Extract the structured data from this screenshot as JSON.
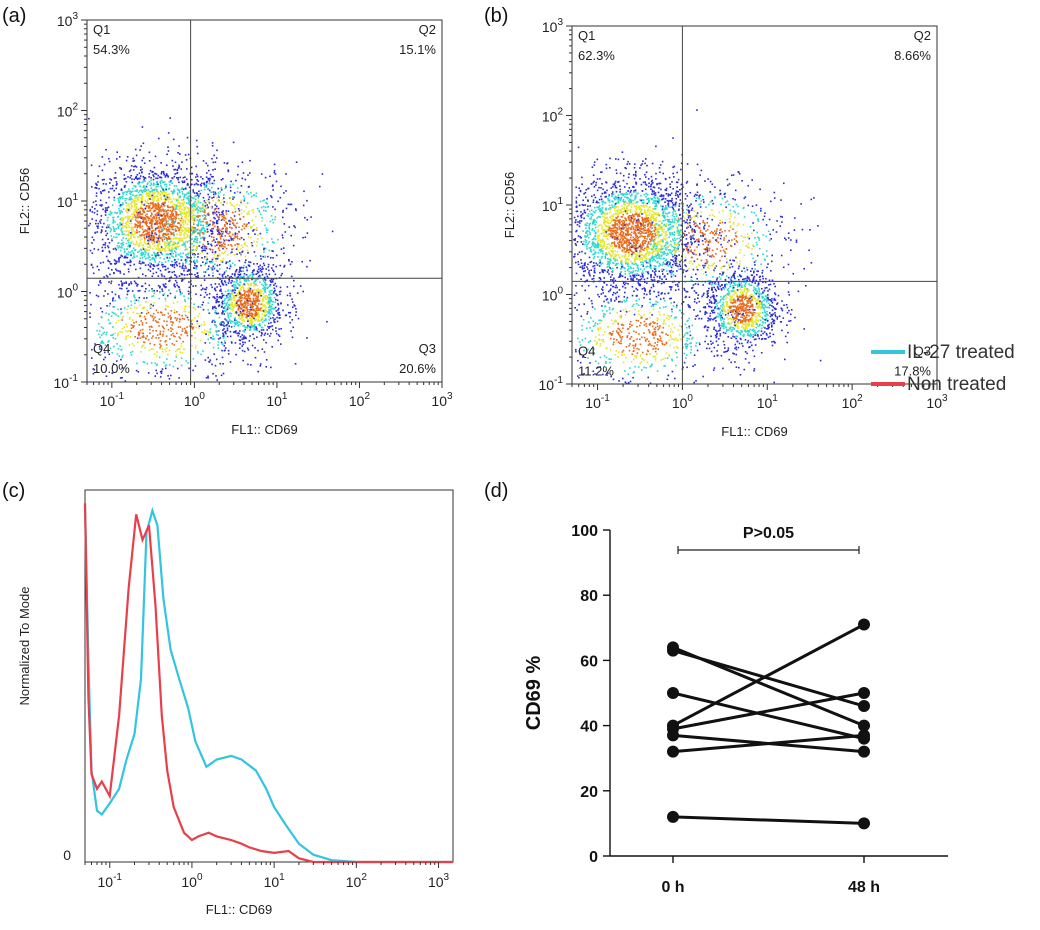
{
  "panels": {
    "a": "(a)",
    "b": "(b)",
    "c": "(c)",
    "d": "(d)"
  },
  "colors": {
    "il27": "#33c4e0",
    "non_treated": "#e8404a",
    "dot_low": "#2a2ad8",
    "dot_mid": "#2ed8d0",
    "dot_high": "#e6e62a",
    "dot_peak": "#e86a1a"
  },
  "chart_data": [
    {
      "type": "scatter",
      "panel": "(a)",
      "xlabel": "FL1:: CD69",
      "ylabel": "FL2:: CD56",
      "xscale": "log",
      "yscale": "log",
      "xlim": [
        0.05,
        1000
      ],
      "ylim": [
        0.1,
        1000
      ],
      "gate": {
        "x": 0.9,
        "y": 1.4
      },
      "quadrants": [
        {
          "name": "Q1",
          "percent": "54.3%"
        },
        {
          "name": "Q2",
          "percent": "15.1%"
        },
        {
          "name": "Q3",
          "percent": "20.6%"
        },
        {
          "name": "Q4",
          "percent": "10.0%"
        }
      ],
      "clusters": [
        {
          "x": 0.35,
          "y": 6,
          "sx": 0.42,
          "sy": 0.32,
          "n": 2300
        },
        {
          "x": 4.5,
          "y": 0.75,
          "sx": 0.22,
          "sy": 0.22,
          "n": 1000
        },
        {
          "x": 0.4,
          "y": 0.4,
          "sx": 0.55,
          "sy": 0.3,
          "n": 700
        },
        {
          "x": 2,
          "y": 5,
          "sx": 0.5,
          "sy": 0.35,
          "n": 700
        }
      ]
    },
    {
      "type": "scatter",
      "panel": "(b)",
      "xlabel": "FL1:: CD69",
      "ylabel": "FL2:: CD56",
      "xscale": "log",
      "yscale": "log",
      "xlim": [
        0.05,
        1000
      ],
      "ylim": [
        0.1,
        1000
      ],
      "gate": {
        "x": 1.0,
        "y": 1.4
      },
      "quadrants": [
        {
          "name": "Q1",
          "percent": "62.3%"
        },
        {
          "name": "Q2",
          "percent": "8.66%"
        },
        {
          "name": "Q3",
          "percent": "17.8%"
        },
        {
          "name": "Q4",
          "percent": "11.2%"
        }
      ],
      "clusters": [
        {
          "x": 0.25,
          "y": 5,
          "sx": 0.4,
          "sy": 0.32,
          "n": 2400
        },
        {
          "x": 5,
          "y": 0.7,
          "sx": 0.22,
          "sy": 0.22,
          "n": 1000
        },
        {
          "x": 0.3,
          "y": 0.35,
          "sx": 0.5,
          "sy": 0.3,
          "n": 650
        },
        {
          "x": 2,
          "y": 4,
          "sx": 0.5,
          "sy": 0.35,
          "n": 600
        }
      ],
      "legend": [
        {
          "label": "IL-27 treated",
          "color": "#33c4e0"
        },
        {
          "label": "Non treated",
          "color": "#e8404a"
        }
      ]
    },
    {
      "type": "line",
      "panel": "(c)",
      "xlabel": "FL1:: CD69",
      "ylabel": "Normalized To Mode",
      "xscale": "log",
      "xlim": [
        0.05,
        1500
      ],
      "ylim": [
        0,
        100
      ],
      "y_tick_labels": [
        "0"
      ],
      "series": [
        {
          "name": "IL-27 treated",
          "color": "#33c4e0",
          "x": [
            0.05,
            0.055,
            0.06,
            0.07,
            0.08,
            0.1,
            0.13,
            0.16,
            0.2,
            0.24,
            0.28,
            0.33,
            0.38,
            0.45,
            0.55,
            0.7,
            0.9,
            1.1,
            1.5,
            2,
            3,
            4,
            6,
            8,
            10,
            14,
            20,
            30,
            50,
            100,
            1500
          ],
          "y": [
            98,
            55,
            25,
            14,
            13,
            16,
            20,
            28,
            35,
            50,
            90,
            96,
            92,
            72,
            58,
            50,
            42,
            33,
            26,
            28,
            29,
            28,
            25,
            20,
            15,
            10,
            5,
            2,
            0.5,
            0,
            0
          ]
        },
        {
          "name": "Non treated",
          "color": "#e8404a",
          "x": [
            0.05,
            0.055,
            0.06,
            0.07,
            0.08,
            0.1,
            0.13,
            0.17,
            0.21,
            0.25,
            0.3,
            0.36,
            0.43,
            0.5,
            0.6,
            0.8,
            1,
            1.2,
            1.6,
            2,
            3,
            4,
            5,
            7,
            10,
            15,
            20,
            30,
            50,
            1500
          ],
          "y": [
            98,
            45,
            24,
            20,
            22,
            18,
            40,
            75,
            95,
            88,
            92,
            70,
            40,
            25,
            15,
            8,
            6,
            7,
            8,
            7,
            6,
            5,
            4,
            3,
            2.5,
            3,
            1,
            0,
            0,
            0
          ]
        }
      ]
    },
    {
      "type": "line",
      "panel": "(d)",
      "categories": [
        "0 h",
        "48 h"
      ],
      "ylabel": "CD69 %",
      "ylim": [
        0,
        100
      ],
      "yticks": [
        0,
        20,
        40,
        60,
        80,
        100
      ],
      "annotation": "P>0.05",
      "series": [
        {
          "values": [
            64,
            40
          ]
        },
        {
          "values": [
            63,
            46
          ]
        },
        {
          "values": [
            50,
            36
          ]
        },
        {
          "values": [
            40,
            71
          ]
        },
        {
          "values": [
            39,
            50
          ]
        },
        {
          "values": [
            37,
            32
          ]
        },
        {
          "values": [
            32,
            37
          ]
        },
        {
          "values": [
            12,
            10
          ]
        }
      ]
    }
  ]
}
